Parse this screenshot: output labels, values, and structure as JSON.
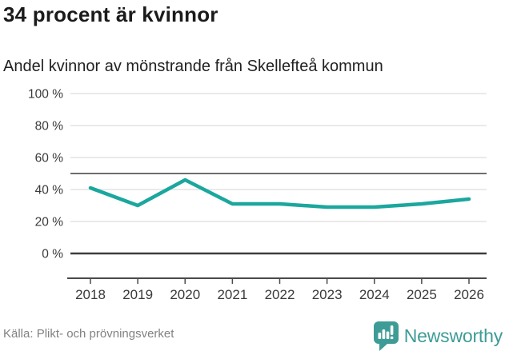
{
  "header": {
    "title": "34 procent är kvinnor",
    "subtitle": "Andel kvinnor av mönstrande från Skellefteå kommun"
  },
  "footer": {
    "source": "Källa: Plikt- och prövningsverket",
    "brand": "Newsworthy"
  },
  "colors": {
    "line": "#1BA79E",
    "brand_teal": "#3E9C96",
    "grid": "#e4e4e4",
    "reference_line": "#6e6e6e",
    "zero_line": "#3d3d3d",
    "axis": "#4a4a4a",
    "tick_text": "#3a3a3a",
    "title_text": "#1b1b1b",
    "source_text": "#828282"
  },
  "chart_data": {
    "type": "line",
    "title": "34 procent är kvinnor",
    "subtitle": "Andel kvinnor av mönstrande från Skellefteå kommun",
    "categories": [
      "2018",
      "2019",
      "2020",
      "2021",
      "2022",
      "2023",
      "2024",
      "2025",
      "2026"
    ],
    "series": [
      {
        "name": "Andel kvinnor av mönstrande",
        "values": [
          41,
          30,
          46,
          31,
          31,
          29,
          29,
          31,
          34
        ]
      }
    ],
    "unit": "%",
    "ylim": [
      0,
      100
    ],
    "y_ticks": [
      0,
      20,
      40,
      60,
      80,
      100
    ],
    "y_tick_labels": [
      "0 %",
      "20 %",
      "40 %",
      "60 %",
      "80 %",
      "100 %"
    ],
    "reference_line": 50,
    "grid": true,
    "legend": false,
    "source": "Källa: Plikt- och prövningsverket"
  }
}
